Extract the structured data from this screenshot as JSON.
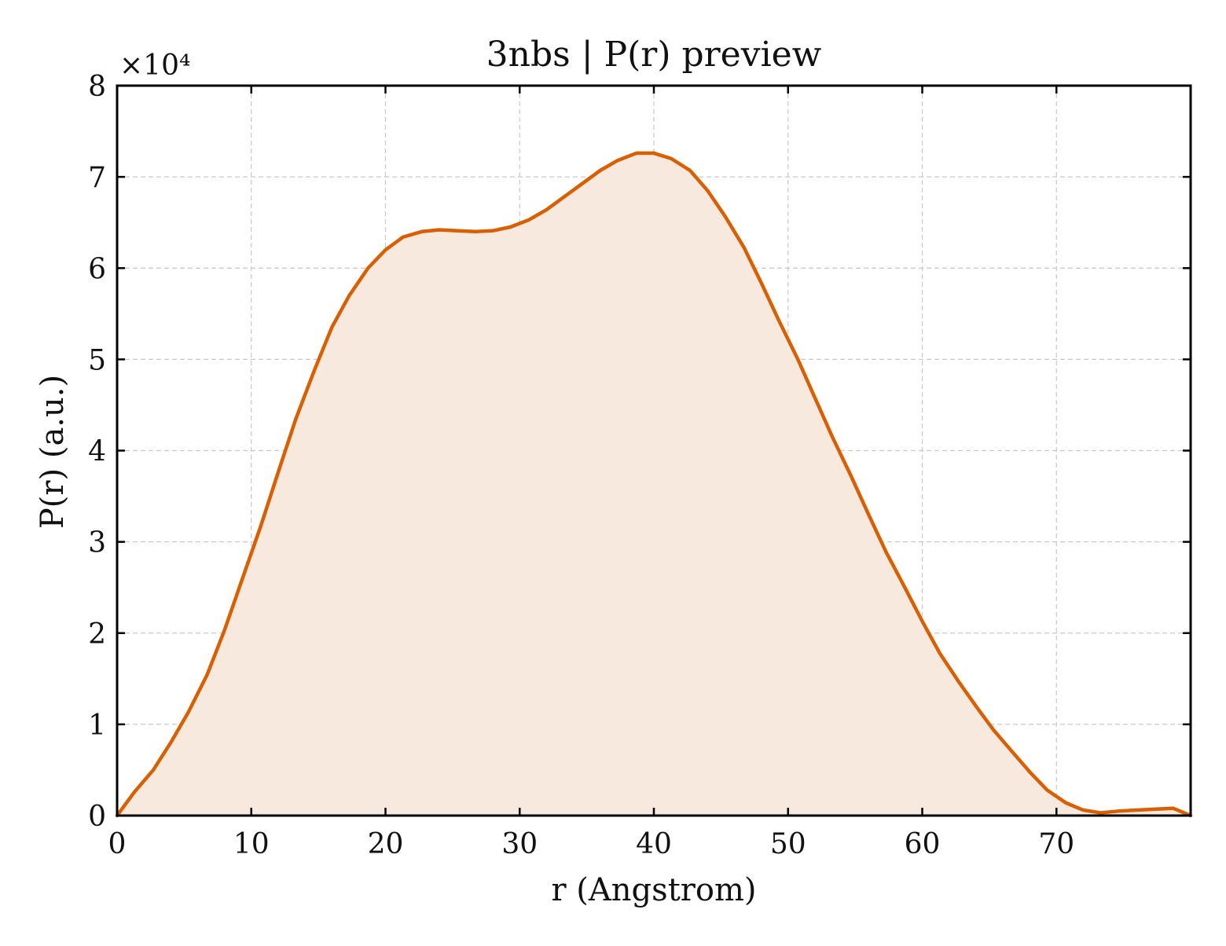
{
  "chart_data": {
    "type": "area",
    "title": "3nbs | P(r) preview",
    "xlabel": "r (Angstrom)",
    "ylabel": "P(r) (a.u.)",
    "y_multiplier_label": "×10⁴",
    "xlim": [
      0,
      80
    ],
    "ylim": [
      0,
      80000
    ],
    "x_ticks": [
      0,
      10,
      20,
      30,
      40,
      50,
      60,
      70
    ],
    "y_ticks": [
      0,
      10000,
      20000,
      30000,
      40000,
      50000,
      60000,
      70000,
      80000
    ],
    "x_tick_labels": [
      "0",
      "10",
      "20",
      "30",
      "40",
      "50",
      "60",
      "70"
    ],
    "y_tick_labels": [
      "0",
      "1",
      "2",
      "3",
      "4",
      "5",
      "6",
      "7",
      "8"
    ],
    "grid": true,
    "colors": {
      "line": "#d95f02",
      "fill": "#f8e9df"
    },
    "series": [
      {
        "x": [
          0,
          1.3,
          2.7,
          4.0,
          5.3,
          6.7,
          8.0,
          9.3,
          10.7,
          12.0,
          13.3,
          14.7,
          16.0,
          17.3,
          18.7,
          20.0,
          21.3,
          22.7,
          24.0,
          25.3,
          26.7,
          28.0,
          29.3,
          30.7,
          32.0,
          33.3,
          34.7,
          36.0,
          37.3,
          38.7,
          40.0,
          41.3,
          42.7,
          44.0,
          45.3,
          46.7,
          48.0,
          49.3,
          50.7,
          52.0,
          53.3,
          54.7,
          56.0,
          57.3,
          58.7,
          60.0,
          61.3,
          62.7,
          64.0,
          65.3,
          66.7,
          68.0,
          69.3,
          70.7,
          72.0,
          73.3,
          74.7,
          76.0,
          77.3,
          78.7,
          80.0
        ],
        "y": [
          0,
          2600,
          5000,
          8000,
          11300,
          15400,
          20300,
          25800,
          31700,
          37600,
          43400,
          48800,
          53500,
          57000,
          60000,
          62000,
          63400,
          64000,
          64200,
          64100,
          64000,
          64100,
          64500,
          65300,
          66400,
          67800,
          69300,
          70700,
          71800,
          72600,
          72600,
          72000,
          70700,
          68500,
          65700,
          62300,
          58400,
          54300,
          50100,
          45800,
          41500,
          37200,
          33000,
          28900,
          25000,
          21300,
          17800,
          14700,
          12000,
          9400,
          7000,
          4800,
          2800,
          1400,
          600,
          300,
          500,
          600,
          700,
          800,
          0
        ]
      }
    ]
  }
}
